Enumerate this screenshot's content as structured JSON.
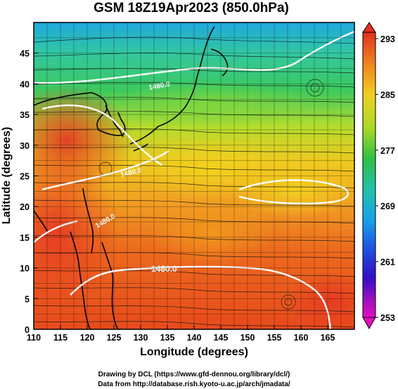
{
  "title": "GSM 18Z19Apr2023 (850.0hPa)",
  "xlabel": "Longitude (degrees)",
  "ylabel": "Latitude (degrees)",
  "x_ticks": [
    "110",
    "115",
    "120",
    "125",
    "130",
    "135",
    "140",
    "145",
    "150",
    "155",
    "160",
    "165"
  ],
  "y_ticks": [
    "0",
    "5",
    "10",
    "15",
    "20",
    "25",
    "30",
    "35",
    "40",
    "45"
  ],
  "colorbar_ticks": [
    "293",
    "285",
    "277",
    "269",
    "261",
    "253"
  ],
  "contour_labels": [
    "1480.0",
    "1480.0",
    "1480.0",
    "1480.0"
  ],
  "credits": {
    "line1": "Drawing by DCL (https://www.gfd-dennou.org/library/dcl/)",
    "line2": "Data from http://database.rish.kyoto-u.ac.jp/arch/jmadata/"
  },
  "colors": {
    "warm": "#e84a1c",
    "mid": "#e8d81c",
    "cool": "#35c46a",
    "cold": "#1fa8e0",
    "contour": "#ffffff"
  },
  "map_extent": {
    "lon": [
      110,
      170
    ],
    "lat": [
      0,
      50
    ]
  },
  "colorbar_range": [
    253,
    293
  ]
}
